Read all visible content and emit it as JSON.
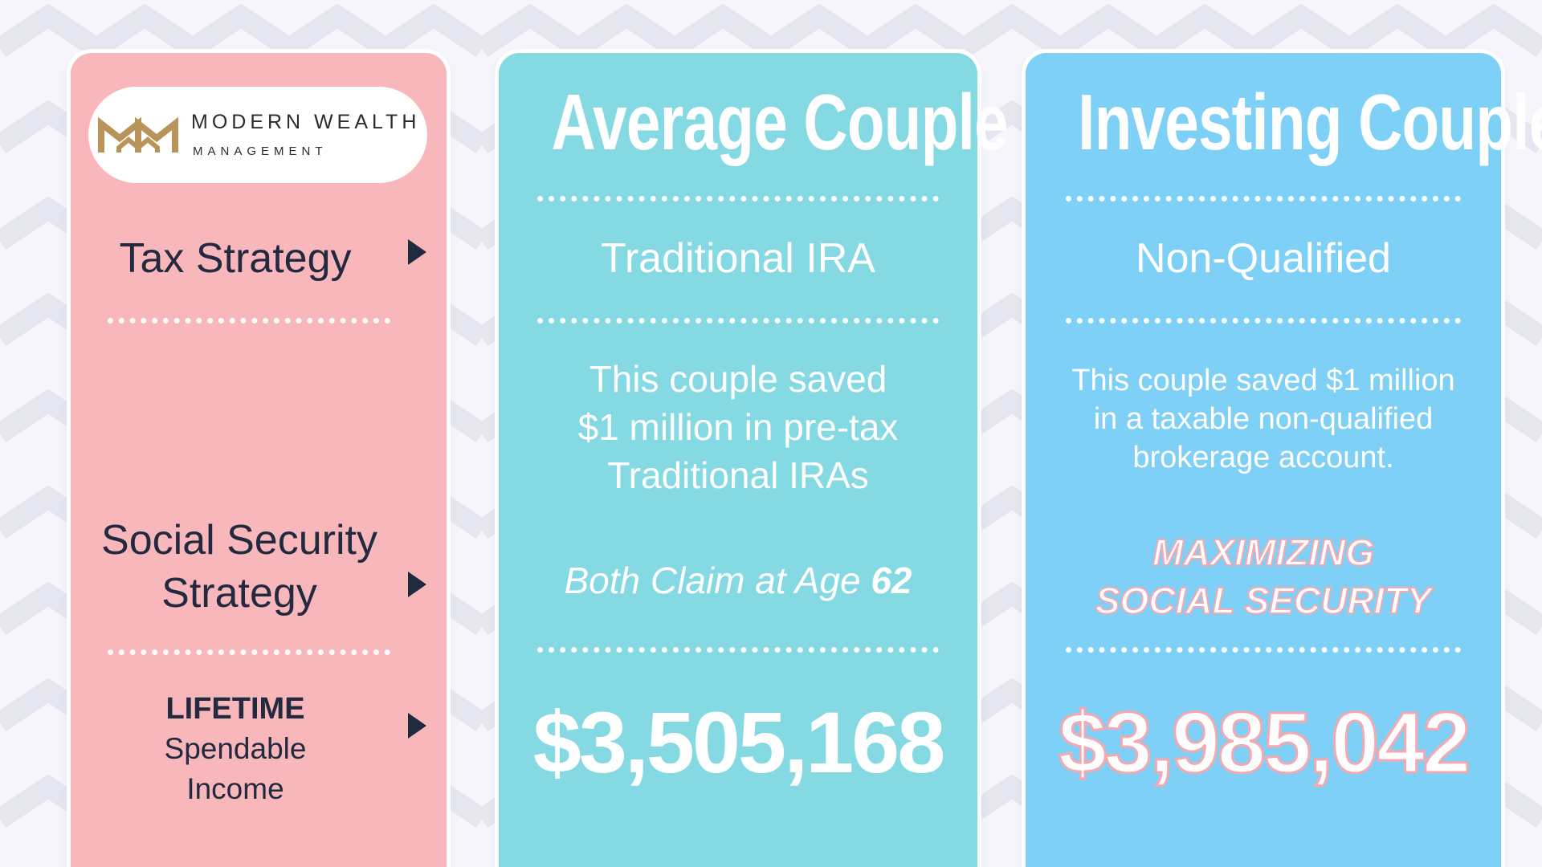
{
  "brand": {
    "name": "MODERN WEALTH",
    "subtitle": "MANAGEMENT",
    "gold_color": "#b8935a"
  },
  "rows": {
    "tax_strategy": "Tax Strategy",
    "social_security_line1": "Social Security",
    "social_security_line2": "Strategy",
    "lifetime": "LIFETIME",
    "spendable": "Spendable",
    "income": "Income"
  },
  "average_couple": {
    "title": "Average Couple",
    "tax_strategy": "Traditional IRA",
    "description": [
      "This couple saved",
      "$1 million in pre-tax",
      "Traditional IRAs"
    ],
    "social_security_prefix": "Both Claim at Age ",
    "social_security_age": "62",
    "lifetime_income": "$3,505,168",
    "background_color": "#84d9e2"
  },
  "investing_couple": {
    "title": "Investing Couple",
    "tax_strategy": "Non-Qualified",
    "description": [
      "This couple saved $1 million",
      "in a taxable non-qualified",
      "brokerage account."
    ],
    "social_security_line1": "MAXIMIZING",
    "social_security_line2": "SOCIAL SECURITY",
    "lifetime_income": "$3,985,042",
    "highlight_color": "#f7b7bb",
    "background_color": "#7fd0f6"
  },
  "left_column_color": "#f7b7bb"
}
